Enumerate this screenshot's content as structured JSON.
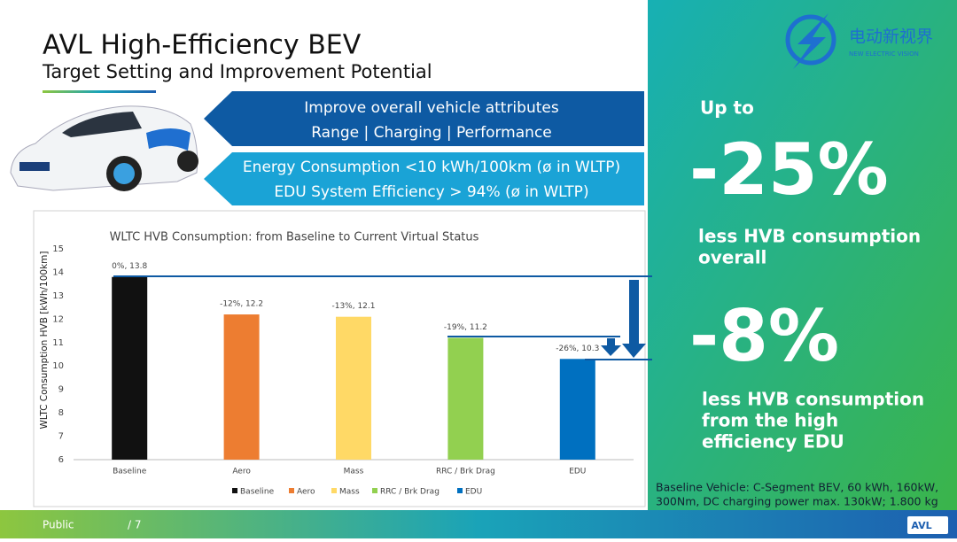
{
  "header": {
    "title": "AVL High-Efficiency BEV",
    "subtitle": "Target Setting and Improvement Potential"
  },
  "banners": {
    "top": [
      "Improve overall vehicle attributes",
      "Range | Charging | Performance"
    ],
    "bottom": [
      "Energy Consumption <10 kWh/100km (ø in WLTP)",
      "EDU System Efficiency > 94% (ø in WLTP)"
    ]
  },
  "logo": {
    "name": "电动新视界",
    "tagline": "NEW ELECTRIC VISION"
  },
  "highlights": {
    "intro": "Up to",
    "first": {
      "value": "-25%",
      "text": [
        "less HVB consumption",
        "overall"
      ]
    },
    "second": {
      "value": "-8%",
      "text": [
        "less HVB consumption",
        "from the high",
        "efficiency EDU"
      ]
    }
  },
  "footnote": [
    "Baseline Vehicle: C-Segment BEV, 60 kWh, 160kW,",
    "300Nm, DC charging power max. 130kW; 1.800 kg"
  ],
  "footer": {
    "classification": "Public",
    "page": "/ 7",
    "brand": "AVL"
  },
  "chart_data": {
    "type": "bar",
    "title": "WLTC HVB Consumption: from Baseline to Current Virtual Status",
    "y_label": "WLTC Consumption HVB [kWh/100km]",
    "categories": [
      "Baseline",
      "Aero",
      "Mass",
      "RRC / Brk Drag",
      "EDU"
    ],
    "values": [
      13.8,
      12.2,
      12.1,
      11.2,
      10.3
    ],
    "value_labels": [
      "0%, 13.8",
      "-12%, 12.2",
      "-13%, 12.1",
      "-19%, 11.2",
      "-26%, 10.3"
    ],
    "colors": [
      "#111111",
      "#ed7d31",
      "#ffd966",
      "#92d050",
      "#0070c0"
    ],
    "ylim": [
      6,
      15
    ],
    "yticks": [
      6,
      7,
      8,
      9,
      10,
      11,
      12,
      13,
      14,
      15
    ],
    "legend": "bottom"
  }
}
